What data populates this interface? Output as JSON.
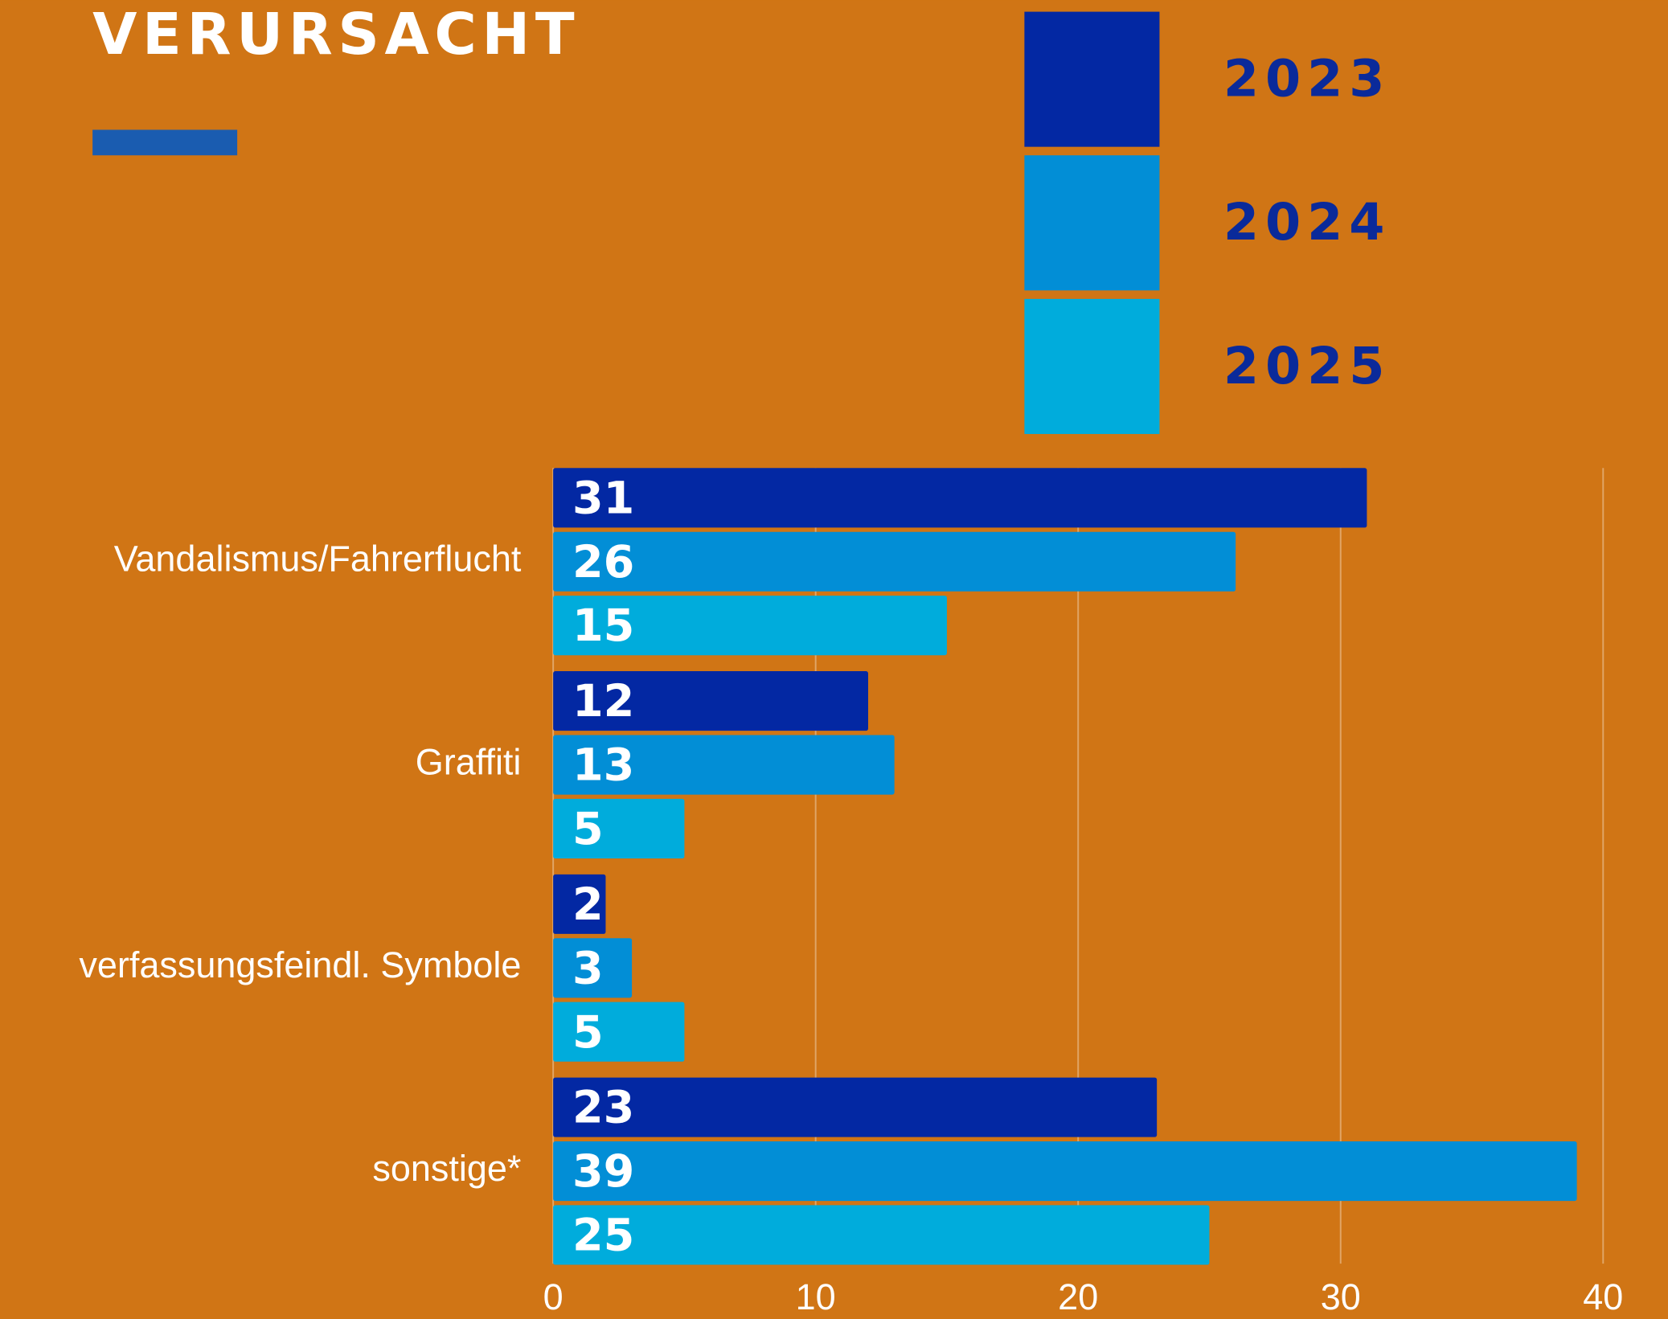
{
  "chart_data": {
    "type": "hbar",
    "title": "VERURSACHT",
    "categories": [
      "Vandalismus/Fahrerflucht",
      "Graffiti",
      "verfassungsfeindl. Symbole",
      "sonstige*"
    ],
    "series": [
      {
        "name": "2023",
        "color": "#0328a3",
        "values": [
          31,
          12,
          2,
          23
        ]
      },
      {
        "name": "2024",
        "color": "#028ed6",
        "values": [
          26,
          13,
          3,
          39
        ]
      },
      {
        "name": "2025",
        "color": "#00acdc",
        "values": [
          15,
          5,
          5,
          25
        ]
      }
    ],
    "xlim": [
      0,
      40
    ],
    "xticks": [
      0,
      10,
      20,
      30,
      40
    ],
    "grid": true
  }
}
